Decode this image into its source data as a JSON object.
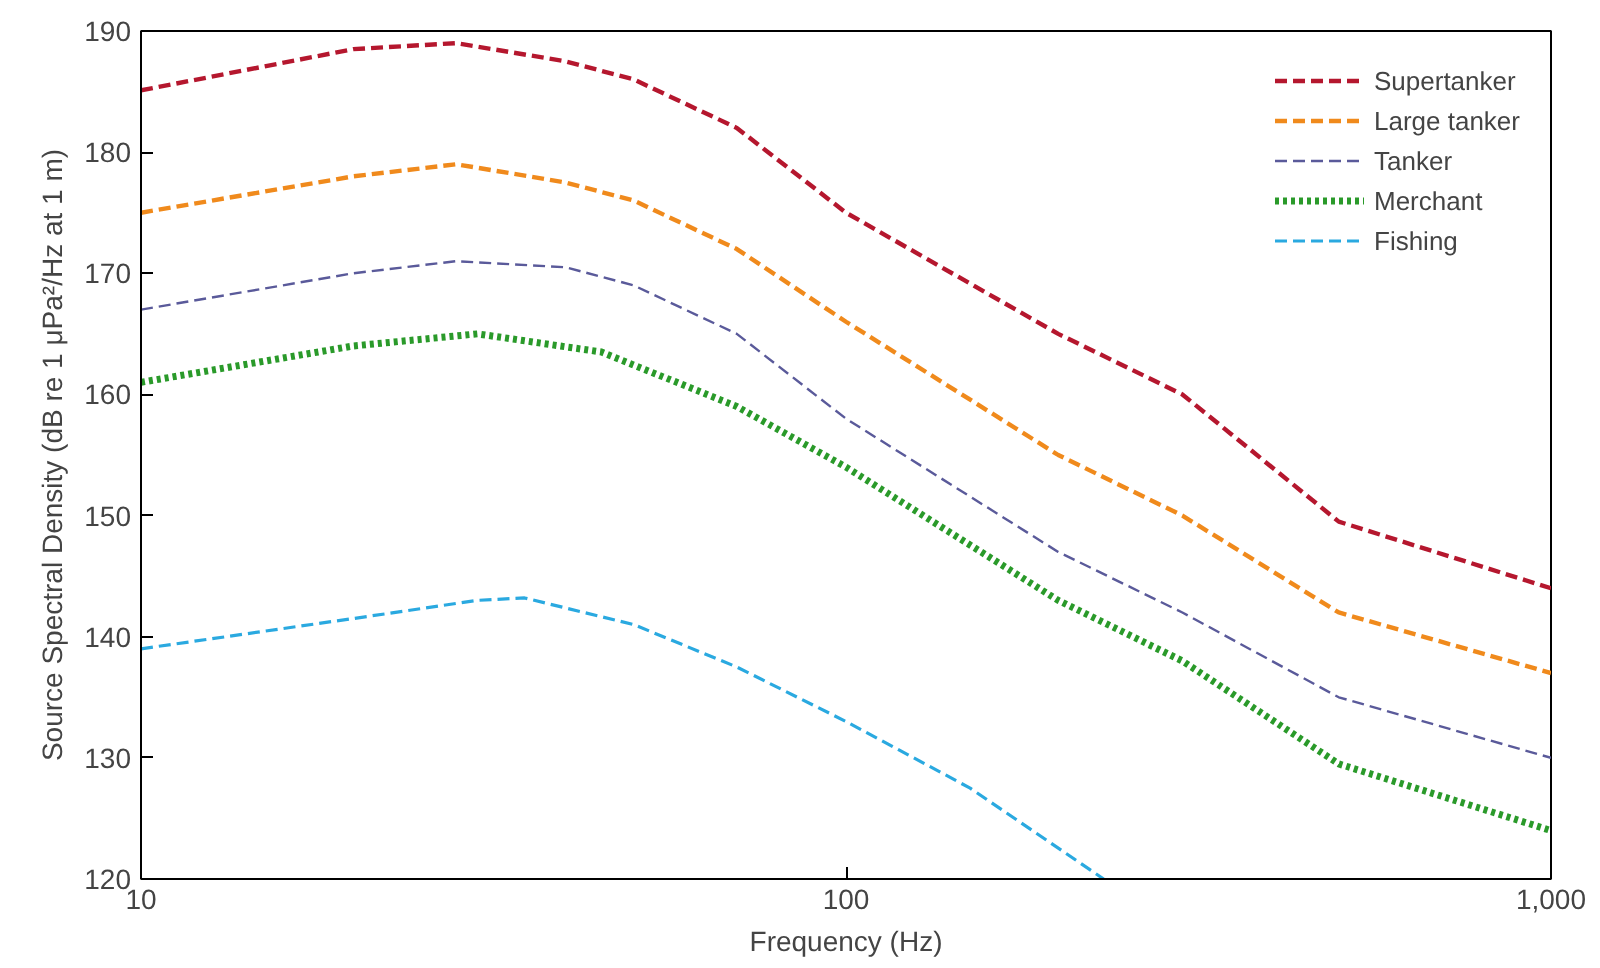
{
  "chart_data": {
    "type": "line",
    "xlabel": "Frequency (Hz)",
    "ylabel": "Source Spectral Density (dB re 1 μPa²/Hz at 1 m)",
    "log": "x",
    "xlim": [
      10,
      1000
    ],
    "ylim": [
      120,
      190
    ],
    "xticks": [
      10,
      100,
      {
        "value": 1000,
        "label": "1,000"
      }
    ],
    "yticks": [
      120,
      130,
      140,
      150,
      160,
      170,
      180,
      190
    ],
    "grid": false,
    "legend": "top right",
    "marker": "none",
    "series": [
      {
        "name": "Supertanker",
        "color": "#b5172e",
        "line_style": "dashed",
        "x": [
          10,
          20,
          28,
          40,
          50,
          70,
          100,
          200,
          300,
          500,
          1000
        ],
        "values": [
          185.1,
          188.5,
          189,
          187.5,
          186,
          182,
          175,
          165,
          160,
          149.5,
          144
        ]
      },
      {
        "name": "Large tanker",
        "color": "#f08a1c",
        "line_style": "dashed",
        "x": [
          10,
          20,
          28,
          40,
          50,
          70,
          100,
          200,
          300,
          500,
          1000
        ],
        "values": [
          175,
          178,
          179,
          177.5,
          176,
          172,
          166,
          155,
          150,
          142,
          137
        ]
      },
      {
        "name": "Tanker",
        "color": "#5a5a9a",
        "line_style": "dashed",
        "x": [
          10,
          20,
          28,
          40,
          50,
          70,
          100,
          200,
          300,
          500,
          1000
        ],
        "values": [
          167,
          170,
          171,
          170.5,
          169,
          165,
          158,
          147,
          142,
          135,
          130
        ]
      },
      {
        "name": "Merchant",
        "color": "#2a9a2a",
        "line_style": "dotted",
        "x": [
          10,
          20,
          30,
          45,
          70,
          100,
          200,
          300,
          500,
          1000
        ],
        "values": [
          161,
          164,
          165,
          163.5,
          159,
          154,
          143,
          138,
          129.5,
          124
        ]
      },
      {
        "name": "Fishing",
        "color": "#2aa9e0",
        "line_style": "dashed",
        "x": [
          10,
          20,
          30,
          35,
          50,
          70,
          100,
          150,
          232
        ],
        "values": [
          139,
          141.5,
          143,
          143.2,
          141,
          137.5,
          133,
          127.5,
          120
        ]
      }
    ]
  }
}
